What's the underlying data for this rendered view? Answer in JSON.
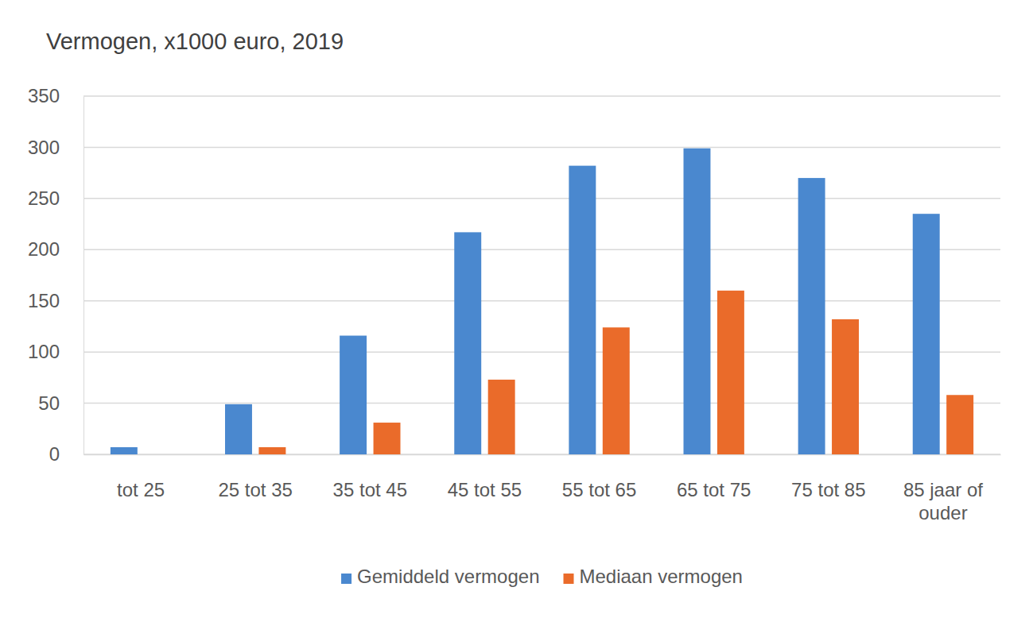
{
  "chart_data": {
    "type": "bar",
    "title": "Vermogen, x1000 euro, 2019",
    "categories": [
      "tot 25",
      "25 tot 35",
      "35 tot 45",
      "45 tot 55",
      "55 tot 65",
      "65 tot 75",
      "75 tot 85",
      "85 jaar of ouder"
    ],
    "series": [
      {
        "name": "Gemiddeld vermogen",
        "color": "#4a88cf",
        "values": [
          7,
          49,
          116,
          217,
          282,
          299,
          270,
          235
        ]
      },
      {
        "name": "Mediaan vermogen",
        "color": "#ea6b2a",
        "values": [
          0,
          7,
          31,
          73,
          124,
          160,
          132,
          58
        ]
      }
    ],
    "ylim": [
      0,
      350
    ],
    "yticks": [
      0,
      50,
      100,
      150,
      200,
      250,
      300,
      350
    ],
    "grid": true,
    "legend": "bottom"
  }
}
